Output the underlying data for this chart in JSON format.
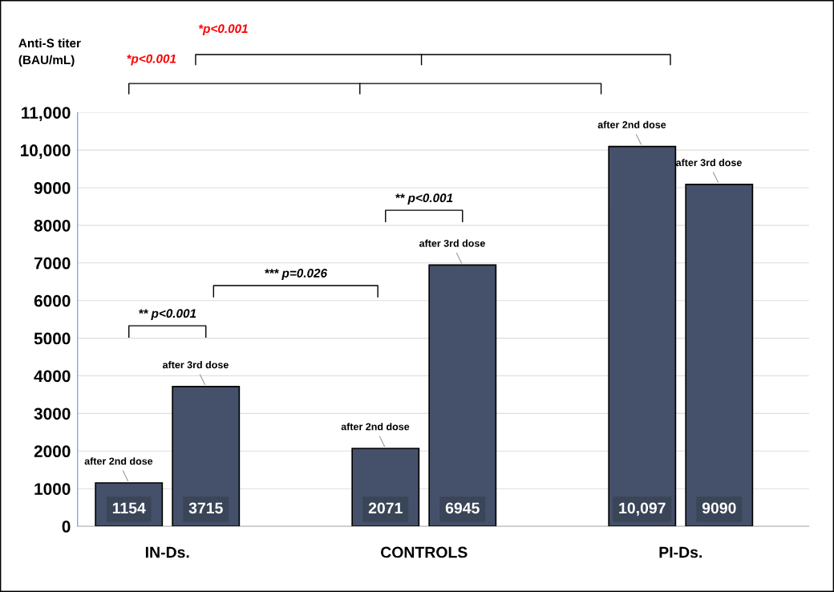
{
  "chart_data": {
    "type": "bar",
    "ylabel": "Anti-S titer\n(BAU/mL)",
    "categories": [
      "IN-Ds.",
      "CONTROLS",
      "PI-Ds."
    ],
    "series": [
      {
        "name": "after 2nd dose",
        "color": "#45516a",
        "values": [
          1154,
          2071,
          10097
        ],
        "value_labels": [
          "1154",
          "2071",
          "10,097"
        ]
      },
      {
        "name": "after 3rd dose",
        "color": "#45516a",
        "values": [
          3715,
          6945,
          9090
        ],
        "value_labels": [
          "3715",
          "6945",
          "9090"
        ]
      }
    ],
    "ylim": [
      0,
      11000
    ],
    "yticks": [
      0,
      1000,
      2000,
      3000,
      4000,
      5000,
      6000,
      7000,
      8000,
      9000,
      {
        "value": 10000,
        "label": "10,000"
      },
      {
        "value": 11000,
        "label": "11,000"
      }
    ],
    "grid": "y",
    "annotations": [
      "*p<0.001",
      "*p<0.001",
      "** p<0.001",
      "*** p=0.026",
      "** p<0.001"
    ]
  }
}
